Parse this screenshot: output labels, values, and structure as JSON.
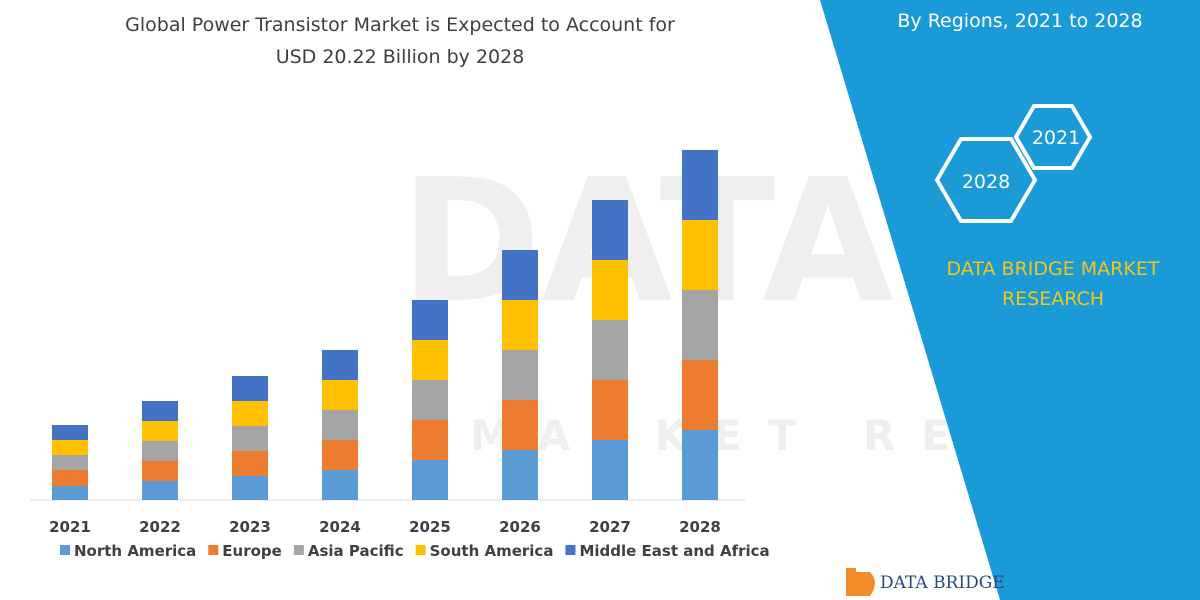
{
  "colors": {
    "panel": "#1a9ad6",
    "accent": "#f5c518",
    "text": "#404040"
  },
  "header": {
    "title_line1": "Global Power Transistor Market is Expected to Account for",
    "title_line2": "USD 20.22 Billion by 2028"
  },
  "side_panel": {
    "title": "By Regions, 2021 to 2028",
    "hex_start": "2021",
    "hex_end": "2028",
    "brand_line1": "DATA BRIDGE MARKET",
    "brand_line2": "RESEARCH"
  },
  "logo": {
    "text": "DATA BRIDGE"
  },
  "watermark": {
    "main": "DATABRIDGE",
    "sub": "MARKET RESEARCH"
  },
  "chart_data": {
    "type": "bar",
    "stacked": true,
    "categories": [
      "2021",
      "2022",
      "2023",
      "2024",
      "2025",
      "2026",
      "2027",
      "2028"
    ],
    "series": [
      {
        "name": "North America",
        "color": "#5b9bd5",
        "values": [
          14,
          19,
          24,
          30,
          40,
          50,
          60,
          70
        ]
      },
      {
        "name": "Europe",
        "color": "#ed7d31",
        "values": [
          16,
          20,
          25,
          30,
          40,
          50,
          60,
          70
        ]
      },
      {
        "name": "Asia Pacific",
        "color": "#a5a5a5",
        "values": [
          15,
          20,
          25,
          30,
          40,
          50,
          60,
          70
        ]
      },
      {
        "name": "South America",
        "color": "#ffc000",
        "values": [
          15,
          20,
          25,
          30,
          40,
          50,
          60,
          70
        ]
      },
      {
        "name": "Middle East and Africa",
        "color": "#4472c4",
        "values": [
          15,
          20,
          25,
          30,
          40,
          50,
          60,
          70
        ]
      }
    ],
    "ylim": [
      0,
      350
    ],
    "grid": false,
    "legend_position": "bottom"
  }
}
